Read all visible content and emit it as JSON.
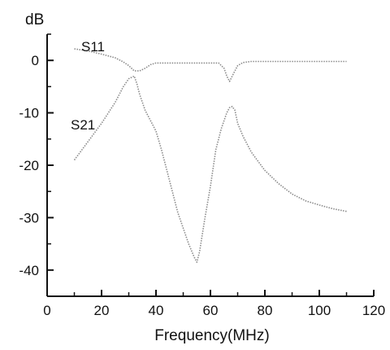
{
  "chart_data": {
    "type": "line",
    "title": "",
    "xlabel": "Frequency(MHz)",
    "ylabel": "dB",
    "xlim": [
      0,
      120
    ],
    "ylim": [
      -45,
      5
    ],
    "xticks": [
      0,
      20,
      40,
      60,
      80,
      100,
      120
    ],
    "yticks": [
      0,
      -10,
      -20,
      -30,
      -40
    ],
    "grid": false,
    "colors": {
      "axis": "#111111",
      "line": "#8a8a8a"
    },
    "series": [
      {
        "name": "S11",
        "x": [
          10,
          15,
          20,
          25,
          28,
          30,
          32,
          34,
          36,
          38,
          40,
          45,
          50,
          55,
          60,
          63,
          65,
          66,
          67,
          68,
          69,
          70,
          72,
          75,
          80,
          90,
          100,
          110
        ],
        "y": [
          2.2,
          1.8,
          1.2,
          0.5,
          -0.3,
          -1.0,
          -2.0,
          -2.0,
          -1.5,
          -0.8,
          -0.5,
          -0.5,
          -0.5,
          -0.5,
          -0.5,
          -0.5,
          -1.5,
          -3.0,
          -4.0,
          -3.0,
          -2.0,
          -1.0,
          -0.4,
          -0.2,
          -0.2,
          -0.2,
          -0.2,
          -0.2
        ]
      },
      {
        "name": "S21",
        "x": [
          10,
          15,
          20,
          25,
          28,
          30,
          32,
          33,
          34,
          36,
          38,
          40,
          42,
          44,
          46,
          48,
          50,
          52,
          54,
          55,
          56,
          58,
          60,
          62,
          64,
          66,
          67,
          68,
          69,
          70,
          72,
          75,
          80,
          85,
          90,
          95,
          100,
          105,
          110
        ],
        "y": [
          -19,
          -15.5,
          -12,
          -8,
          -5,
          -3.5,
          -3.0,
          -4.5,
          -6.5,
          -9.5,
          -11.5,
          -13.5,
          -17,
          -21,
          -25,
          -29,
          -32,
          -35,
          -37.5,
          -38.5,
          -36.5,
          -30,
          -24,
          -17,
          -13,
          -10,
          -9,
          -8.8,
          -9.5,
          -12,
          -14.5,
          -17.5,
          -21,
          -23.5,
          -25.5,
          -26.8,
          -27.6,
          -28.3,
          -28.8
        ]
      }
    ]
  }
}
